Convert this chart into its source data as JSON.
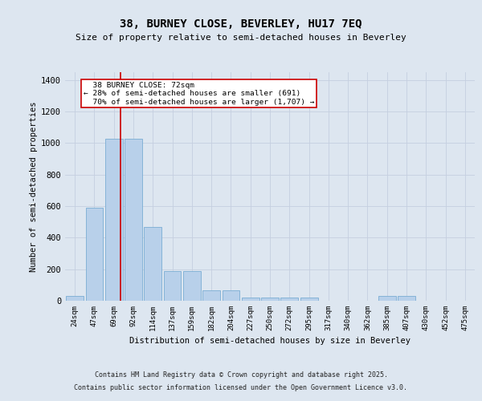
{
  "title": "38, BURNEY CLOSE, BEVERLEY, HU17 7EQ",
  "subtitle": "Size of property relative to semi-detached houses in Beverley",
  "xlabel": "Distribution of semi-detached houses by size in Beverley",
  "ylabel": "Number of semi-detached properties",
  "bar_labels": [
    "24sqm",
    "47sqm",
    "69sqm",
    "92sqm",
    "114sqm",
    "137sqm",
    "159sqm",
    "182sqm",
    "204sqm",
    "227sqm",
    "250sqm",
    "272sqm",
    "295sqm",
    "317sqm",
    "340sqm",
    "362sqm",
    "385sqm",
    "407sqm",
    "430sqm",
    "452sqm",
    "475sqm"
  ],
  "bar_values": [
    28,
    591,
    1027,
    1027,
    470,
    190,
    190,
    67,
    67,
    20,
    20,
    18,
    18,
    0,
    0,
    0,
    28,
    28,
    0,
    0,
    0
  ],
  "bar_color": "#b8d0ea",
  "bar_edge_color": "#7aadd4",
  "background_color": "#dde6f0",
  "grid_color": "#c5cfe0",
  "vline_x": 2.35,
  "vline_color": "#cc0000",
  "annotation_text": "  38 BURNEY CLOSE: 72sqm  \n← 28% of semi-detached houses are smaller (691)\n  70% of semi-detached houses are larger (1,707) →",
  "ylim": [
    0,
    1450
  ],
  "yticks": [
    0,
    200,
    400,
    600,
    800,
    1000,
    1200,
    1400
  ],
  "footer1": "Contains HM Land Registry data © Crown copyright and database right 2025.",
  "footer2": "Contains public sector information licensed under the Open Government Licence v3.0."
}
